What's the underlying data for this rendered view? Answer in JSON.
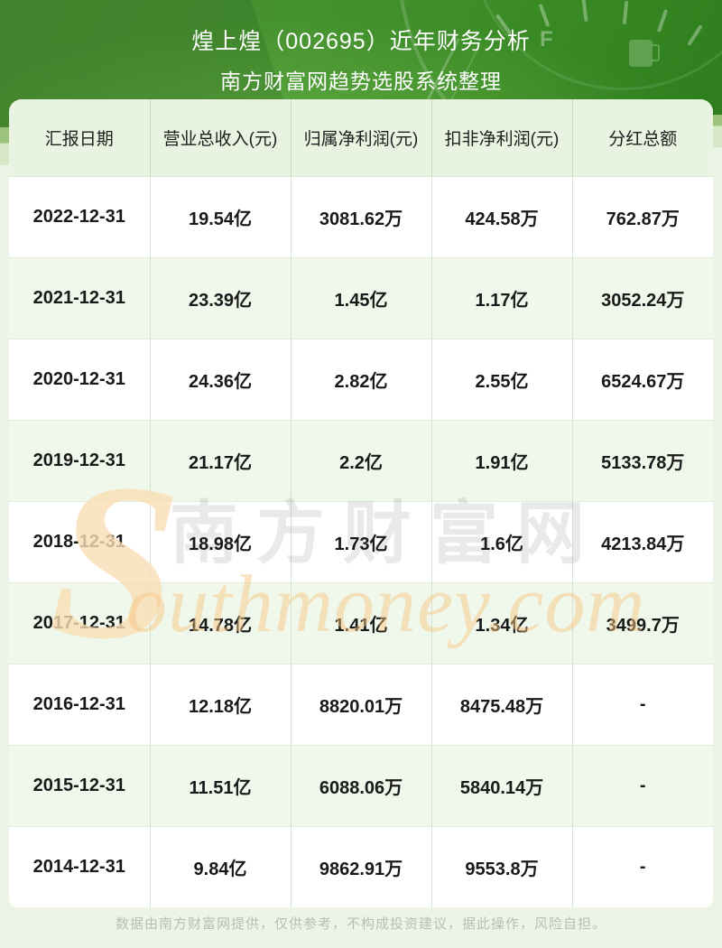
{
  "header": {
    "title": "煌上煌（002695）近年财务分析",
    "subtitle": "南方财富网趋势选股系统整理",
    "gauge_label": "F"
  },
  "watermark": {
    "swoosh": "S",
    "text_cn": "南方财富网",
    "text_en": "outhmoney.com"
  },
  "footer": {
    "disclaimer": "数据由南方财富网提供，仅供参考，不构成投资建议，据此操作，风险自担。"
  },
  "chart_data": {
    "type": "table",
    "title": "煌上煌（002695）近年财务分析",
    "subtitle": "南方财富网趋势选股系统整理",
    "columns": [
      "汇报日期",
      "营业总收入(元)",
      "归属净利润(元)",
      "扣非净利润(元)",
      "分红总额"
    ],
    "rows": [
      [
        "2022-12-31",
        "19.54亿",
        "3081.62万",
        "424.58万",
        "762.87万"
      ],
      [
        "2021-12-31",
        "23.39亿",
        "1.45亿",
        "1.17亿",
        "3052.24万"
      ],
      [
        "2020-12-31",
        "24.36亿",
        "2.82亿",
        "2.55亿",
        "6524.67万"
      ],
      [
        "2019-12-31",
        "21.17亿",
        "2.2亿",
        "1.91亿",
        "5133.78万"
      ],
      [
        "2018-12-31",
        "18.98亿",
        "1.73亿",
        "1.6亿",
        "4213.84万"
      ],
      [
        "2017-12-31",
        "14.78亿",
        "1.41亿",
        "1.34亿",
        "3499.7万"
      ],
      [
        "2016-12-31",
        "12.18亿",
        "8820.01万",
        "8475.48万",
        "-"
      ],
      [
        "2015-12-31",
        "11.51亿",
        "6088.06万",
        "5840.14万",
        "-"
      ],
      [
        "2014-12-31",
        "9.84亿",
        "9862.91万",
        "9553.8万",
        "-"
      ]
    ],
    "row_striping": [
      "white",
      "light-green"
    ],
    "legend_position": "none",
    "grid": true
  },
  "colors": {
    "header_green": "#3f8d2a",
    "table_header_bg": "#e8f4e1",
    "row_alt_bg": "#f0f8ec",
    "border_green": "#d7e3cf",
    "watermark_gray": "#e7e7e7",
    "watermark_orange": "#f6c684",
    "footer_text": "#b9bdb6",
    "title_text": "#ffffff"
  }
}
